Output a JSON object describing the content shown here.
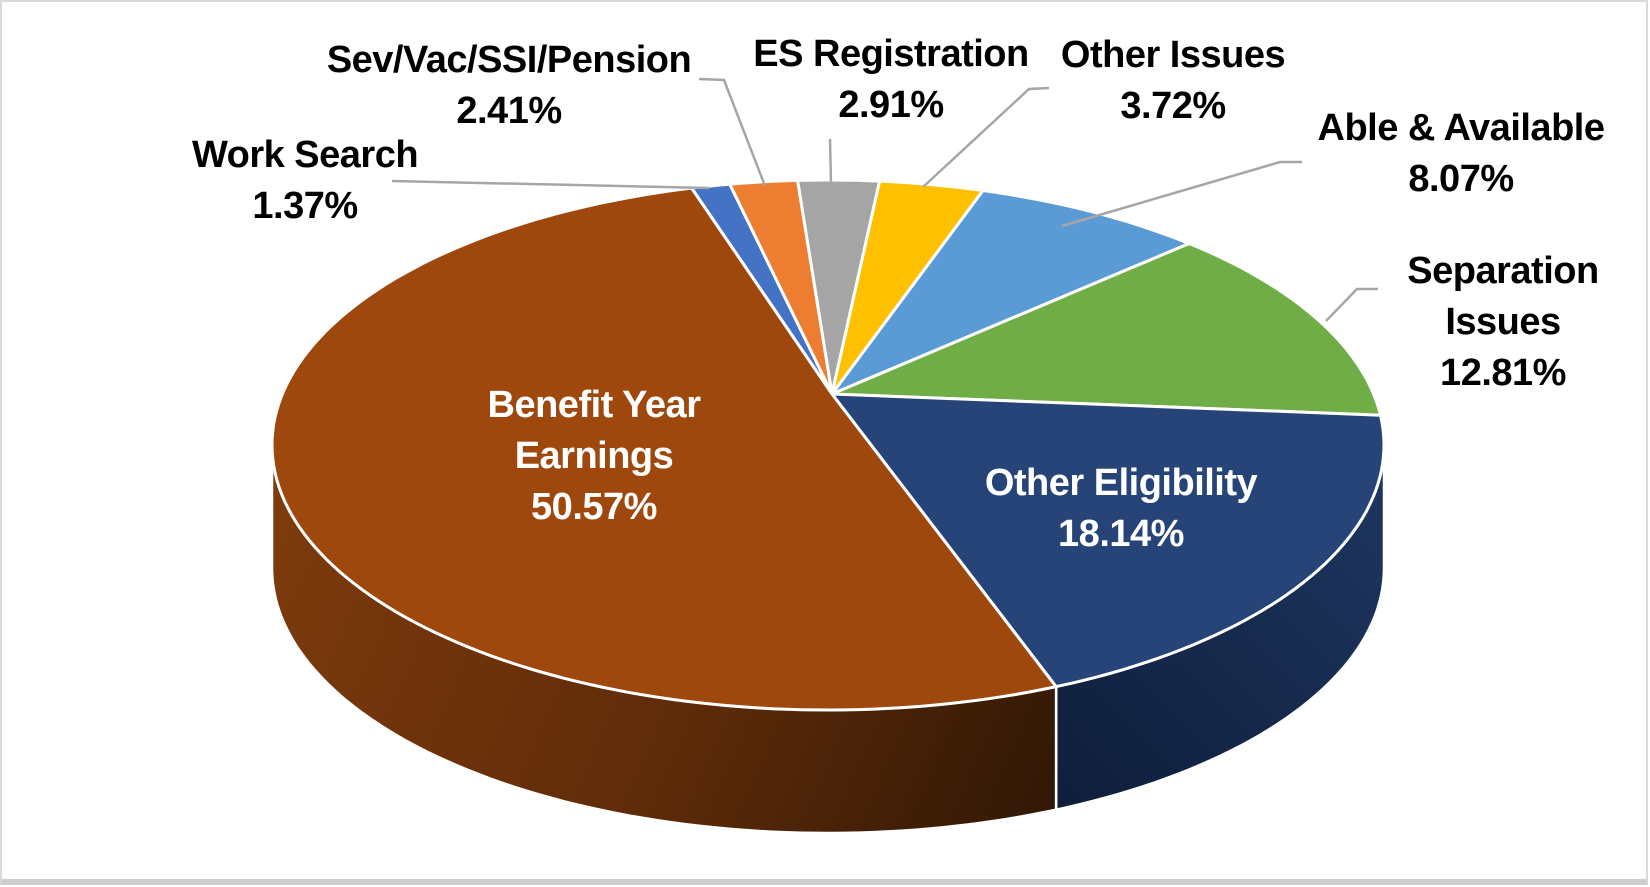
{
  "chart_data": {
    "type": "pie",
    "projection": "3d",
    "title": "",
    "direction": "clockwise",
    "start_angle_deg": 342,
    "legend": "none",
    "background": "#FFFFFF",
    "leader_line_color": "#A6A6A6",
    "slices": [
      {
        "label": "Work Search",
        "pct": 1.37,
        "pct_text": "1.37%",
        "color": "#4472C4",
        "placement": "outside",
        "label_lines": [
          "Work Search"
        ]
      },
      {
        "label": "Sev/Vac/SSI/Pension",
        "pct": 2.41,
        "pct_text": "2.41%",
        "color": "#ED7D31",
        "placement": "outside",
        "label_lines": [
          "Sev/Vac/SSI/Pension"
        ]
      },
      {
        "label": "ES Registration",
        "pct": 2.91,
        "pct_text": "2.91%",
        "color": "#A5A5A5",
        "placement": "outside",
        "label_lines": [
          "ES Registration"
        ]
      },
      {
        "label": "Other Issues",
        "pct": 3.72,
        "pct_text": "3.72%",
        "color": "#FFC000",
        "placement": "outside",
        "label_lines": [
          "Other Issues"
        ]
      },
      {
        "label": "Able & Available",
        "pct": 8.07,
        "pct_text": "8.07%",
        "color": "#5B9BD5",
        "placement": "outside",
        "label_lines": [
          "Able & Available"
        ]
      },
      {
        "label": "Separation Issues",
        "pct": 12.81,
        "pct_text": "12.81%",
        "color": "#70AD47",
        "placement": "outside",
        "label_lines": [
          "Separation",
          "Issues"
        ]
      },
      {
        "label": "Other Eligibility",
        "pct": 18.14,
        "pct_text": "18.14%",
        "color": "#264478",
        "placement": "inside",
        "label_lines": [
          "Other Eligibility"
        ]
      },
      {
        "label": "Benefit Year Earnings",
        "pct": 50.57,
        "pct_text": "50.57%",
        "color": "#9E480E",
        "placement": "inside",
        "label_lines": [
          "Benefit Year",
          "Earnings"
        ]
      }
    ]
  }
}
